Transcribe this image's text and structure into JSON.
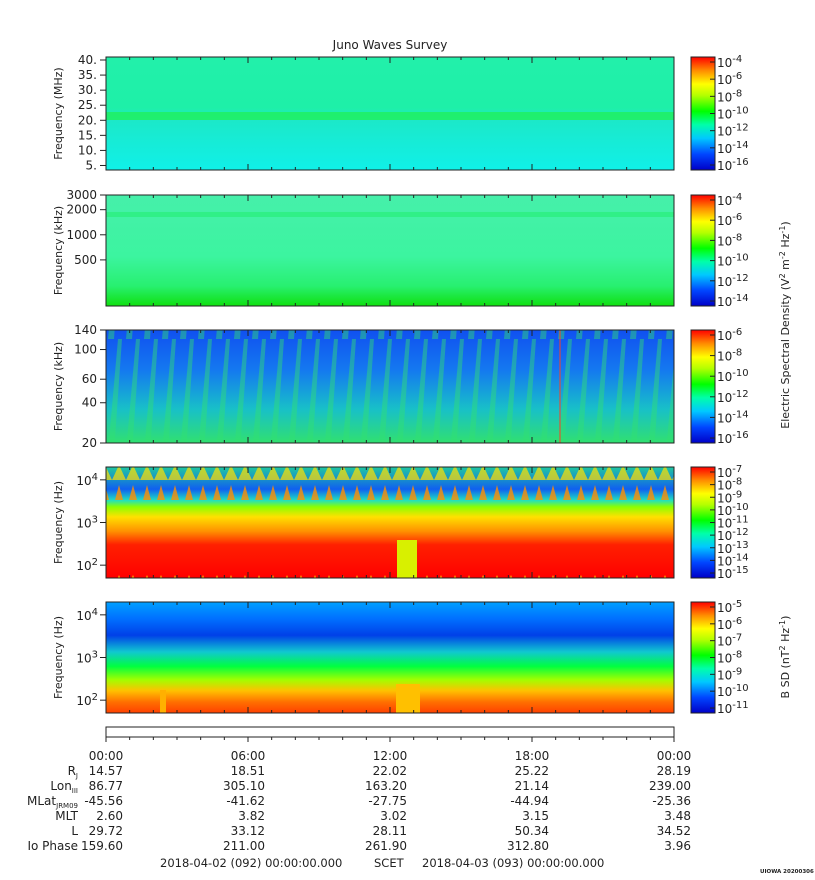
{
  "title": "Juno Waves Survey",
  "stamp": "UIOWA 20200306",
  "chart_data": [
    {
      "type": "heatmap",
      "ylabel": "Frequency (MHz)",
      "yticks": [
        "40.",
        "35.",
        "30.",
        "25.",
        "20.",
        "15.",
        "10.",
        "5."
      ],
      "ylim": [
        3.5,
        41
      ],
      "colorbar": {
        "ticks": [
          {
            "base": "10",
            "exp": "-4"
          },
          {
            "base": "10",
            "exp": "-6"
          },
          {
            "base": "10",
            "exp": "-8"
          },
          {
            "base": "10",
            "exp": "-10"
          },
          {
            "base": "10",
            "exp": "-12"
          },
          {
            "base": "10",
            "exp": "-14"
          },
          {
            "base": "10",
            "exp": "-16"
          }
        ]
      }
    },
    {
      "type": "heatmap",
      "ylabel": "Frequency (kHz)",
      "yticks": [
        "3000",
        "2000",
        "1000",
        "500"
      ],
      "ylim": [
        140,
        3000
      ],
      "colorbar": {
        "ticks": [
          {
            "base": "10",
            "exp": "-4"
          },
          {
            "base": "10",
            "exp": "-6"
          },
          {
            "base": "10",
            "exp": "-8"
          },
          {
            "base": "10",
            "exp": "-10"
          },
          {
            "base": "10",
            "exp": "-12"
          },
          {
            "base": "10",
            "exp": "-14"
          }
        ]
      }
    },
    {
      "type": "heatmap",
      "ylabel": "Frequency (kHz)",
      "yticks": [
        "140",
        "100",
        "60",
        "40",
        "20"
      ],
      "ylim": [
        20,
        140
      ],
      "colorbar": {
        "ticks": [
          {
            "base": "10",
            "exp": "-6"
          },
          {
            "base": "10",
            "exp": "-8"
          },
          {
            "base": "10",
            "exp": "-10"
          },
          {
            "base": "10",
            "exp": "-12"
          },
          {
            "base": "10",
            "exp": "-14"
          },
          {
            "base": "10",
            "exp": "-16"
          }
        ]
      }
    },
    {
      "type": "heatmap",
      "ylabel": "Frequency (Hz)",
      "yticks": [
        {
          "base": "10",
          "exp": "4"
        },
        {
          "base": "10",
          "exp": "3"
        },
        {
          "base": "10",
          "exp": "2"
        }
      ],
      "ylim": [
        50,
        20000
      ],
      "colorbar": {
        "ticks": [
          {
            "base": "10",
            "exp": "-7"
          },
          {
            "base": "10",
            "exp": "-8"
          },
          {
            "base": "10",
            "exp": "-9"
          },
          {
            "base": "10",
            "exp": "-10"
          },
          {
            "base": "10",
            "exp": "-11"
          },
          {
            "base": "10",
            "exp": "-12"
          },
          {
            "base": "10",
            "exp": "-13"
          },
          {
            "base": "10",
            "exp": "-14"
          },
          {
            "base": "10",
            "exp": "-15"
          }
        ]
      }
    },
    {
      "type": "heatmap",
      "ylabel": "Frequency (Hz)",
      "yticks": [
        {
          "base": "10",
          "exp": "4"
        },
        {
          "base": "10",
          "exp": "3"
        },
        {
          "base": "10",
          "exp": "2"
        }
      ],
      "ylim": [
        50,
        20000
      ],
      "colorbar": {
        "ticks": [
          {
            "base": "10",
            "exp": "-5"
          },
          {
            "base": "10",
            "exp": "-6"
          },
          {
            "base": "10",
            "exp": "-7"
          },
          {
            "base": "10",
            "exp": "-8"
          },
          {
            "base": "10",
            "exp": "-9"
          },
          {
            "base": "10",
            "exp": "-10"
          },
          {
            "base": "10",
            "exp": "-11"
          }
        ]
      }
    }
  ],
  "colorbar_labels": {
    "electric": {
      "a": "Electric Spectral Density (V",
      "b": " m",
      "c": " Hz",
      "d": ")",
      "e1": "2",
      "e2": "-2",
      "e3": "-1"
    },
    "magnetic": {
      "a": "B SD (nT",
      "b": " Hz",
      "c": ")",
      "e1": "2",
      "e2": "-1"
    }
  },
  "time_axis": {
    "labels": [
      "00:00",
      "06:00",
      "12:00",
      "18:00",
      "00:00"
    ]
  },
  "ephemeris": [
    {
      "label": "R",
      "sub": "J",
      "values": [
        "14.57",
        "18.51",
        "22.02",
        "25.22",
        "28.19"
      ]
    },
    {
      "label": "Lon",
      "sub": "III",
      "values": [
        "86.77",
        "305.10",
        "163.20",
        "21.14",
        "239.00"
      ]
    },
    {
      "label": "MLat",
      "sub": "JRM09",
      "values": [
        "-45.56",
        "-41.62",
        "-27.75",
        "-44.94",
        "-25.36"
      ]
    },
    {
      "label": "MLT",
      "sub": "",
      "values": [
        "2.60",
        "3.82",
        "3.02",
        "3.15",
        "3.48"
      ]
    },
    {
      "label": "L",
      "sub": "",
      "values": [
        "29.72",
        "33.12",
        "28.11",
        "50.34",
        "34.52"
      ]
    },
    {
      "label": "Io Phase",
      "sub": "",
      "values": [
        "159.60",
        "211.00",
        "261.90",
        "312.80",
        "3.96"
      ]
    }
  ],
  "footer": {
    "start": "2018-04-02 (092) 00:00:00.000",
    "scet": "SCET",
    "end": "2018-04-03 (093) 00:00:00.000"
  }
}
